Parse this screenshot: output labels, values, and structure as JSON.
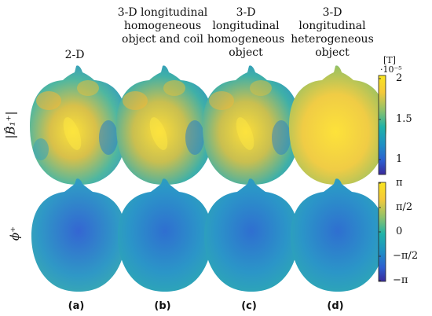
{
  "columns": [
    {
      "title": "2-D",
      "label": "(a)"
    },
    {
      "title": "3-D longitudinal homogeneous object and coil",
      "label": "(b)"
    },
    {
      "title": "3-D longitudinal homogeneous object",
      "label": "(c)"
    },
    {
      "title": "3-D longitudinal heterogeneous object",
      "label": "(d)"
    }
  ],
  "rows": {
    "magnitude_label": "|B̂₁⁺|",
    "phase_label": "ϕ⁺"
  },
  "colorbar_top": {
    "unit": "[T]",
    "scale": "·10⁻⁵",
    "ticks": [
      "2",
      "1.5",
      "1"
    ],
    "colors": [
      "#f9e51f",
      "#f5c93a",
      "#8fc26a",
      "#1fb3a8",
      "#1e8fc4",
      "#2d5ed0",
      "#3a2a9a"
    ]
  },
  "colorbar_bottom": {
    "ticks": [
      "π",
      "π/2",
      "0",
      "−π/2",
      "−π"
    ],
    "colors": [
      "#f9e51f",
      "#f5c93a",
      "#8fc26a",
      "#1fb3a8",
      "#1e8fc4",
      "#2d5ed0",
      "#3a2a9a"
    ]
  }
}
